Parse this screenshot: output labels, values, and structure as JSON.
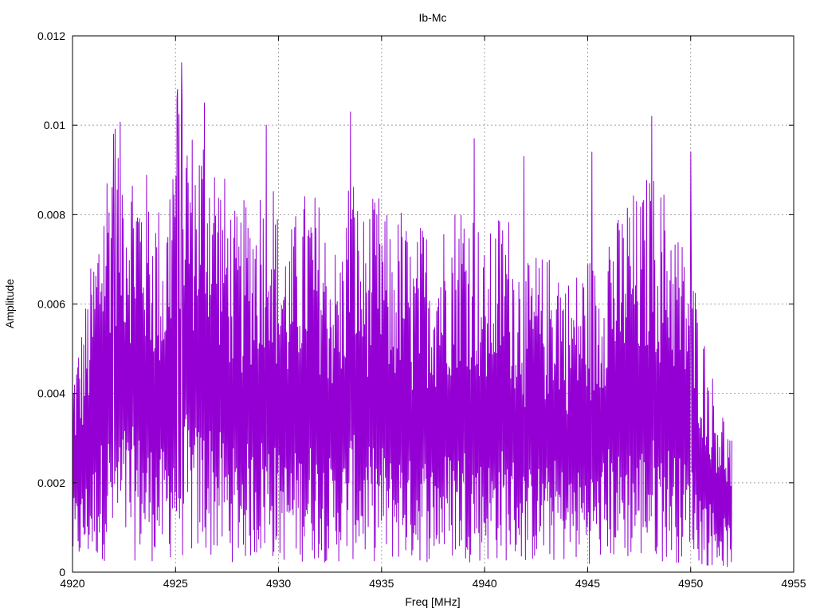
{
  "chart_data": {
    "type": "line",
    "title": "Ib-Mc",
    "xlabel": "Freq [MHz]",
    "ylabel": "Amplitude",
    "xlim": [
      4920,
      4955
    ],
    "ylim": [
      0,
      0.012
    ],
    "x_ticks": [
      "4920",
      "4925",
      "4930",
      "4935",
      "4940",
      "4945",
      "4950",
      "4955"
    ],
    "y_ticks": [
      "0",
      "0.002",
      "0.004",
      "0.006",
      "0.008",
      "0.01",
      "0.012"
    ],
    "grid": true,
    "legend": "none",
    "colors": {
      "series": "#9400d3",
      "grid": "#a0a0a0",
      "axes": "#000000"
    },
    "series": [
      {
        "x": [
          4920.0,
          4920.5,
          4921.0,
          4921.5,
          4922.0,
          4922.5,
          4923.0,
          4923.5,
          4924.0,
          4924.5,
          4925.0,
          4925.5,
          4926.0,
          4926.5,
          4927.0,
          4927.5,
          4928.0,
          4928.5,
          4929.0,
          4929.5,
          4930.0,
          4930.5,
          4931.0,
          4931.5,
          4932.0,
          4932.5,
          4933.0,
          4933.5,
          4934.0,
          4934.5,
          4935.0,
          4935.5,
          4936.0,
          4936.5,
          4937.0,
          4937.5,
          4938.0,
          4938.5,
          4939.0,
          4939.5,
          4940.0,
          4940.5,
          4941.0,
          4941.5,
          4942.0,
          4942.5,
          4943.0,
          4943.5,
          4944.0,
          4944.5,
          4945.0,
          4945.5,
          4946.0,
          4946.5,
          4947.0,
          4947.5,
          4948.0,
          4948.5,
          4949.0,
          4949.5,
          4950.0,
          4950.5,
          4951.0,
          4951.5,
          4952.0
        ],
        "values": [
          0.0025,
          0.003,
          0.0038,
          0.0048,
          0.0055,
          0.0052,
          0.005,
          0.0048,
          0.0045,
          0.0042,
          0.0058,
          0.0055,
          0.0052,
          0.0055,
          0.005,
          0.0046,
          0.0042,
          0.0045,
          0.0046,
          0.0052,
          0.0042,
          0.004,
          0.0044,
          0.0046,
          0.0044,
          0.004,
          0.0038,
          0.005,
          0.0042,
          0.0044,
          0.0045,
          0.004,
          0.0044,
          0.0038,
          0.0042,
          0.004,
          0.0042,
          0.0044,
          0.0046,
          0.0044,
          0.0038,
          0.0042,
          0.0044,
          0.004,
          0.0036,
          0.0038,
          0.0037,
          0.004,
          0.0035,
          0.0036,
          0.0038,
          0.0036,
          0.0044,
          0.0042,
          0.0046,
          0.0044,
          0.0048,
          0.0046,
          0.0045,
          0.004,
          0.0038,
          0.003,
          0.0024,
          0.002,
          0.0016
        ],
        "peaks": [
          [
            4922.0,
            0.0098
          ],
          [
            4925.1,
            0.0108
          ],
          [
            4925.3,
            0.0114
          ],
          [
            4926.4,
            0.0105
          ],
          [
            4929.4,
            0.01
          ],
          [
            4933.5,
            0.0103
          ],
          [
            4939.5,
            0.0097
          ],
          [
            4941.9,
            0.0093
          ],
          [
            4945.2,
            0.0094
          ],
          [
            4948.1,
            0.0102
          ],
          [
            4950.0,
            0.0094
          ]
        ]
      }
    ]
  }
}
